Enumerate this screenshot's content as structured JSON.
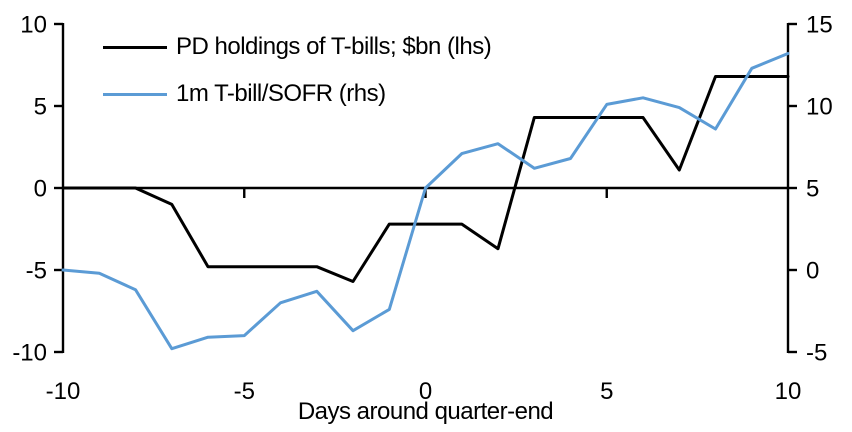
{
  "page": {
    "background": "#ffffff"
  },
  "chart_data": {
    "type": "line",
    "title": "",
    "xlabel": "Days around quarter-end",
    "grid": false,
    "legend_position": "top-left",
    "x": [
      -10,
      -9,
      -8,
      -7,
      -6,
      -5,
      -4,
      -3,
      -2,
      -1,
      0,
      1,
      2,
      3,
      4,
      5,
      6,
      7,
      8,
      9,
      10
    ],
    "series": [
      {
        "name": "PD holdings of T-bills; $bn (lhs)",
        "axis": "left",
        "color": "#000000",
        "values": [
          0,
          0,
          0,
          -1.0,
          -4.8,
          -4.8,
          -4.8,
          -4.8,
          -5.7,
          -2.2,
          -2.2,
          -2.2,
          -3.7,
          4.3,
          4.3,
          4.3,
          4.3,
          1.1,
          6.8,
          6.8,
          6.8
        ]
      },
      {
        "name": "1m T-bill/SOFR (rhs)",
        "axis": "right",
        "color": "#5B9BD5",
        "values": [
          0.0,
          -0.2,
          -1.2,
          -4.8,
          -4.1,
          -4.0,
          -2.0,
          -1.3,
          -3.7,
          -2.4,
          5.0,
          7.1,
          7.7,
          6.2,
          6.8,
          10.1,
          10.5,
          9.9,
          8.6,
          12.3,
          13.2
        ]
      }
    ],
    "left_axis": {
      "min": -10,
      "max": 10,
      "ticks": [
        10,
        5,
        0,
        -5,
        -10
      ]
    },
    "right_axis": {
      "min": -5,
      "max": 15,
      "ticks": [
        15,
        10,
        5,
        0,
        -5
      ]
    },
    "x_axis": {
      "min": -10,
      "max": 10,
      "ticks": [
        -10,
        -5,
        0,
        5,
        10
      ]
    },
    "axis_color": "#000000"
  }
}
